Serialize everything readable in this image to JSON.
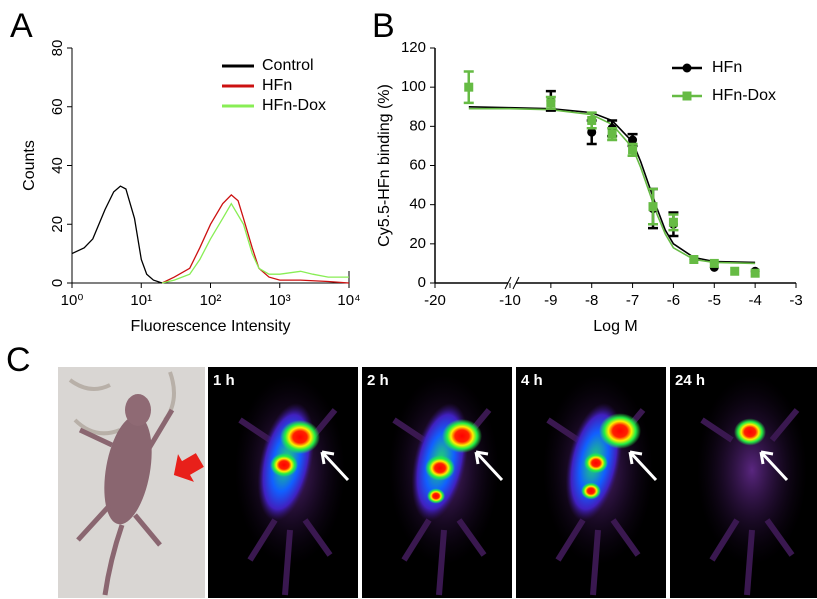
{
  "panel_labels": [
    "A",
    "B",
    "C"
  ],
  "chart_data": [
    {
      "type": "line",
      "xscale": "log",
      "xlabel": "Fluorescence Intensity",
      "ylabel": "Counts",
      "xlim": [
        1,
        10000
      ],
      "ylim": [
        0,
        80
      ],
      "xticks": [
        {
          "value": 1,
          "label": "10⁰"
        },
        {
          "value": 10,
          "label": "10¹"
        },
        {
          "value": 100,
          "label": "10²"
        },
        {
          "value": 1000,
          "label": "10³"
        },
        {
          "value": 10000,
          "label": "10⁴"
        }
      ],
      "yticks": [
        0,
        20,
        40,
        60,
        80
      ],
      "legend": "upper right",
      "series": [
        {
          "name": "Control",
          "color": "#000000",
          "x": [
            1,
            1.5,
            2,
            3,
            4,
            5,
            6,
            8,
            10,
            12,
            15,
            20
          ],
          "values": [
            10,
            12,
            15,
            25,
            31,
            33,
            32,
            22,
            8,
            3,
            1,
            0
          ]
        },
        {
          "name": "HFn",
          "color": "#cc1111",
          "x": [
            20,
            30,
            50,
            70,
            100,
            150,
            200,
            250,
            300,
            400,
            500,
            700,
            1000,
            2000,
            5000,
            10000
          ],
          "values": [
            0,
            2,
            5,
            12,
            20,
            27,
            30,
            28,
            22,
            12,
            5,
            2,
            1,
            1,
            0.5,
            0
          ]
        },
        {
          "name": "HFn-Dox",
          "color": "#88ee55",
          "x": [
            20,
            30,
            50,
            70,
            100,
            150,
            200,
            300,
            400,
            500,
            700,
            1000,
            2000,
            3000,
            5000,
            10000
          ],
          "values": [
            0,
            1,
            3,
            8,
            15,
            22,
            27,
            20,
            10,
            5,
            3,
            3,
            4,
            3,
            2,
            2
          ]
        }
      ]
    },
    {
      "type": "scatter",
      "xlabel": "Log M",
      "ylabel": "Cy5.5-HFn binding (%)",
      "xlim": [
        -20,
        -3
      ],
      "x_break": -10,
      "ylim": [
        0,
        120
      ],
      "xticks": [
        -20,
        -10,
        -9,
        -8,
        -7,
        -6,
        -5,
        -4,
        -3
      ],
      "yticks": [
        0,
        20,
        40,
        60,
        80,
        100,
        120
      ],
      "legend": "upper right",
      "series": [
        {
          "name": "HFn",
          "color": "#000000",
          "marker": "circle",
          "x": [
            -9,
            -8,
            -7.5,
            -7,
            -6.5,
            -6,
            -5.5,
            -5,
            -4
          ],
          "values": [
            93,
            77,
            79,
            73,
            38,
            30,
            12,
            8,
            6
          ],
          "errors": [
            5,
            6,
            4,
            3,
            10,
            6,
            null,
            null,
            null
          ],
          "fit": {
            "x": [
              -15.5,
              -10,
              -9,
              -8,
              -7.5,
              -7,
              -6.8,
              -6.6,
              -6.4,
              -6.2,
              -6,
              -5.5,
              -5,
              -4
            ],
            "values": [
              90,
              89.5,
              89,
              87,
              83,
              72,
              62,
              50,
              38,
              27,
              20,
              13,
              11,
              10.5
            ]
          }
        },
        {
          "name": "HFn-Dox",
          "color": "#66bb44",
          "marker": "square",
          "x": [
            -15.5,
            -9,
            -8,
            -7.5,
            -7,
            -6.5,
            -6,
            -5.5,
            -5,
            -4.5,
            -4
          ],
          "values": [
            100,
            92,
            83,
            76,
            68,
            39,
            31,
            12,
            10,
            6,
            5
          ],
          "errors": [
            8,
            3,
            4,
            3,
            3,
            9,
            4,
            null,
            null,
            null,
            null
          ],
          "fit": {
            "x": [
              -15.5,
              -10,
              -9,
              -8,
              -7.5,
              -7,
              -6.8,
              -6.6,
              -6.4,
              -6.2,
              -6,
              -5.5,
              -5,
              -4
            ],
            "values": [
              89,
              89,
              88.5,
              86,
              81,
              69,
              59,
              47,
              35,
              25,
              18,
              12,
              10.5,
              10
            ]
          }
        }
      ]
    }
  ],
  "images": {
    "time_labels": [
      "1 h",
      "2 h",
      "4 h",
      "24 h"
    ]
  }
}
